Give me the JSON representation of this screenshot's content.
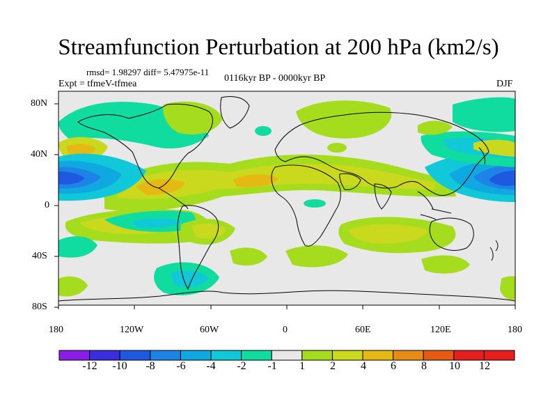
{
  "title": "Streamfunction Perturbation at 200 hPa (km2/s)",
  "stats": "rmsd= 1.98297 diff= 5.47975e-11",
  "experiment": "Expt = tfmeV-tfmea",
  "period": "0116kyr BP - 0000kyr BP",
  "season": "DJF",
  "map": {
    "lat_ticks": [
      "80N",
      "40N",
      "0",
      "40S",
      "80S"
    ],
    "lon_ticks": [
      "180",
      "120W",
      "60W",
      "0",
      "60E",
      "120E",
      "180"
    ]
  },
  "colorbar": {
    "labels": [
      "-12",
      "-10",
      "-8",
      "-6",
      "-4",
      "-2",
      "-1",
      "1",
      "2",
      "4",
      "6",
      "8",
      "10",
      "12"
    ],
    "colors": [
      "#8a1ee6",
      "#3a2de0",
      "#1e5ae0",
      "#1e82e6",
      "#10a8e0",
      "#10c8d8",
      "#10dca0",
      "#e8e8e8",
      "#a6dc1e",
      "#cad81e",
      "#e6b814",
      "#e68c14",
      "#e65a14",
      "#e61e1e"
    ]
  },
  "palette": {
    "neg1": "#10dca0",
    "neg2": "#10c8d8",
    "neg3": "#10a8e0",
    "neg4": "#1e82e6",
    "neg5": "#1e5ae0",
    "pos1": "#a6dc1e",
    "pos2": "#cad81e",
    "pos3": "#e6b814",
    "pos4": "#e68c14",
    "neutral": "#e8e8e8"
  }
}
